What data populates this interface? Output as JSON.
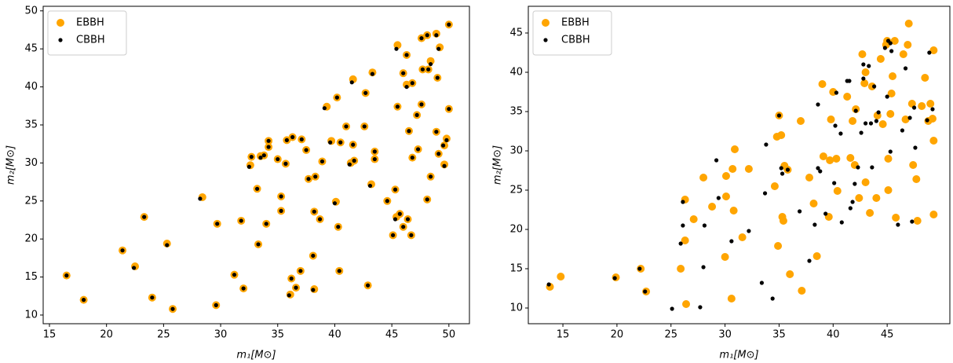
{
  "chart_data": [
    {
      "type": "scatter",
      "xlabel": "m₁[M⊙]",
      "ylabel": "m₂[M⊙]",
      "legend": "upper left",
      "xlim": [
        14.45,
        51.8
      ],
      "ylim": [
        8.86,
        50.6
      ],
      "xticks": [
        15,
        20,
        25,
        30,
        35,
        40,
        45,
        50
      ],
      "yticks": [
        10,
        15,
        20,
        25,
        30,
        35,
        40,
        45,
        50
      ],
      "series": [
        {
          "name": "EBBH",
          "color": "#ffa500",
          "x": [
            16.5,
            18,
            21.4,
            22.5,
            23.3,
            24,
            25.3,
            25.8,
            28.4,
            29.7,
            29.6,
            31.2,
            31.8,
            32,
            32.6,
            32.7,
            33.2,
            33.3,
            33.5,
            33.8,
            34,
            34.2,
            34.2,
            35,
            35.3,
            35.3,
            35.7,
            35.8,
            36.1,
            36.2,
            36.3,
            36.6,
            37,
            37.1,
            37.5,
            37.7,
            38.1,
            38.2,
            38.2,
            38.3,
            38.7,
            38.9,
            39.3,
            39.7,
            40.1,
            40.2,
            40.3,
            40.4,
            40.5,
            41,
            41.4,
            41.6,
            41.6,
            41.7,
            42.6,
            42.7,
            42.9,
            43.2,
            43.3,
            43.5,
            43.5,
            44.6,
            45.1,
            45.3,
            45.4,
            45.5,
            45.5,
            45.7,
            46,
            46,
            46.3,
            46.3,
            46.4,
            46.5,
            46.7,
            46.8,
            46.8,
            47.3,
            47.2,
            47.6,
            47.6,
            47.7,
            48.1,
            48.1,
            48.2,
            48.4,
            48.4,
            48.9,
            48.9,
            49,
            49.1,
            49.2,
            49.6,
            49.6,
            49.8,
            50,
            50
          ],
          "values": [
            15.2,
            12,
            18.5,
            16.4,
            22.9,
            12.3,
            19.4,
            10.8,
            25.5,
            22,
            11.3,
            15.3,
            22.4,
            13.5,
            29.7,
            30.8,
            26.6,
            19.3,
            30.9,
            31,
            22,
            32.1,
            32.9,
            30.5,
            25.6,
            23.7,
            29.9,
            33,
            12.7,
            14.8,
            33.4,
            13.6,
            15.8,
            33.1,
            31.7,
            27.9,
            17.8,
            13.4,
            23.6,
            28.2,
            22.6,
            30.2,
            37.4,
            32.9,
            24.9,
            38.6,
            21.6,
            15.8,
            32.7,
            34.8,
            30,
            32.4,
            41,
            30.3,
            34.8,
            39.2,
            13.9,
            27.2,
            41.9,
            31.5,
            30.5,
            25,
            20.5,
            26.5,
            22.9,
            37.4,
            45.5,
            23.3,
            21.6,
            41.8,
            44.2,
            40.3,
            22.6,
            34.2,
            20.5,
            30.7,
            40.5,
            31.8,
            36.3,
            37.7,
            46.4,
            42.3,
            46.8,
            25.2,
            42.3,
            28.2,
            43.4,
            34.1,
            47,
            41.2,
            31.2,
            45.2,
            32.3,
            29.8,
            33.2,
            37.1,
            48.2
          ]
        },
        {
          "name": "CBBH",
          "color": "#000000",
          "x": [
            16.5,
            18,
            21.4,
            22.4,
            23.3,
            24,
            25.3,
            25.8,
            28.2,
            29.7,
            29.6,
            31.2,
            31.8,
            32,
            32.5,
            32.7,
            33.2,
            33.3,
            33.5,
            33.8,
            34,
            34.2,
            34.2,
            35,
            35.3,
            35.3,
            35.7,
            35.8,
            36,
            36.2,
            36.3,
            36.6,
            37,
            37.1,
            37.5,
            37.7,
            38.1,
            38.1,
            38.2,
            38.3,
            38.7,
            38.9,
            39.1,
            39.6,
            40,
            40.2,
            40.3,
            40.4,
            40.5,
            41,
            41.3,
            41.6,
            41.5,
            41.7,
            42.6,
            42.7,
            42.9,
            43.1,
            43.3,
            43.5,
            43.5,
            44.6,
            45.1,
            45.3,
            45.3,
            45.5,
            45.4,
            45.7,
            46,
            46,
            46.3,
            46.3,
            46.4,
            46.5,
            46.7,
            46.8,
            46.8,
            47.3,
            47.2,
            47.6,
            47.6,
            47.7,
            48.1,
            48.1,
            48.2,
            48.4,
            48.4,
            48.9,
            48.9,
            49,
            49.1,
            49.1,
            49.5,
            49.6,
            49.8,
            50,
            50
          ],
          "values": [
            15.2,
            12,
            18.5,
            16.2,
            22.9,
            12.3,
            19.2,
            10.8,
            25.3,
            22,
            11.3,
            15.3,
            22.4,
            13.5,
            29.5,
            30.8,
            26.6,
            19.3,
            30.7,
            31,
            22,
            32.1,
            32.9,
            30.5,
            25.6,
            23.7,
            29.9,
            33,
            12.6,
            14.8,
            33.4,
            13.6,
            15.8,
            33.1,
            31.7,
            27.9,
            17.8,
            13.3,
            23.6,
            28.2,
            22.6,
            30.2,
            37.2,
            32.7,
            24.7,
            38.6,
            21.6,
            15.8,
            32.7,
            34.8,
            29.8,
            32.4,
            40.6,
            30.3,
            34.8,
            39.2,
            13.9,
            27,
            41.7,
            31.5,
            30.5,
            25,
            20.5,
            26.5,
            22.6,
            37.4,
            45,
            23.3,
            21.6,
            41.8,
            44.2,
            40,
            22.6,
            34.2,
            20.5,
            30.7,
            40.5,
            31.8,
            36.3,
            37.7,
            46.4,
            42.3,
            46.8,
            25.2,
            42.3,
            28.2,
            43,
            34.1,
            46.8,
            41.2,
            31.2,
            45,
            32.3,
            29.6,
            33,
            37.1,
            48.2
          ]
        }
      ]
    },
    {
      "type": "scatter",
      "xlabel": "m₁[M⊙]",
      "ylabel": "m₂[M⊙]",
      "legend": "upper left",
      "xlim": [
        11.8,
        50.8
      ],
      "ylim": [
        8.0,
        48.4
      ],
      "xticks": [
        15,
        20,
        25,
        30,
        35,
        40,
        45
      ],
      "yticks": [
        10,
        15,
        20,
        25,
        30,
        35,
        40,
        45
      ],
      "series": [
        {
          "name": "EBBH",
          "color": "#ffa500",
          "x": [
            13.8,
            14.8,
            19.9,
            22.2,
            22.7,
            25.9,
            26.3,
            26.3,
            26.4,
            27.1,
            28,
            28.8,
            30,
            30.1,
            30.1,
            30.6,
            30.7,
            30.9,
            30.8,
            31.6,
            32.2,
            34.6,
            34.8,
            34.9,
            35,
            35.2,
            35.3,
            35.4,
            35.5,
            35.8,
            36,
            37,
            37.1,
            37.8,
            38.2,
            38.5,
            39,
            39.1,
            39.6,
            39.7,
            39.8,
            40,
            40.3,
            40.4,
            41.3,
            41.6,
            41.8,
            42,
            42.1,
            42.4,
            42.7,
            42.9,
            43,
            43,
            43.4,
            43.6,
            44,
            44.1,
            44.4,
            44.6,
            44.9,
            45,
            45.1,
            45.1,
            45.3,
            45.4,
            45.5,
            45.7,
            45.8,
            46.5,
            46.7,
            46.9,
            47,
            47.3,
            47.4,
            47.7,
            47.8,
            48.2,
            48.5,
            48.8,
            49,
            49.2,
            49.3,
            49.3,
            49.3
          ],
          "values": [
            12.7,
            14,
            13.9,
            15,
            12.1,
            15,
            23.8,
            18.6,
            10.5,
            21.3,
            26.6,
            22.9,
            16.5,
            24.2,
            26.8,
            11.2,
            27.7,
            30.2,
            22.4,
            19,
            27.7,
            25.5,
            31.8,
            17.9,
            34.5,
            32,
            21.6,
            21.1,
            28.1,
            27.6,
            14.3,
            33.8,
            12.2,
            26.6,
            23.3,
            16.6,
            38.5,
            29.3,
            21.6,
            28.8,
            34,
            37.5,
            29,
            24.9,
            36.9,
            29.1,
            33.8,
            28.2,
            35.3,
            24,
            42.3,
            38.6,
            40,
            26,
            22.1,
            38.2,
            24,
            34.5,
            41.7,
            33.4,
            43.5,
            44,
            25,
            29,
            34.7,
            37.3,
            39.5,
            44,
            21.5,
            42.3,
            34,
            43.5,
            46.2,
            36,
            28.2,
            26.4,
            21.1,
            35.7,
            39.3,
            33.8,
            36,
            34.1,
            42.8,
            31.3,
            21.9
          ]
        },
        {
          "name": "CBBH",
          "color": "#000000",
          "x": [
            13.7,
            19.8,
            22.1,
            22.6,
            25.1,
            25.9,
            26.1,
            26.1,
            27.7,
            28,
            28.1,
            29.2,
            29.4,
            30.6,
            32.2,
            33.4,
            33.7,
            33.8,
            34.4,
            35,
            35.2,
            35.3,
            35.8,
            36.9,
            37.8,
            38.6,
            38.3,
            38.6,
            38.8,
            39.3,
            40.1,
            40.2,
            40.3,
            40.7,
            40.8,
            41.3,
            41.5,
            41.6,
            41.8,
            42,
            42.1,
            42.3,
            42.6,
            42.8,
            42.8,
            43,
            43.3,
            43.5,
            43.6,
            43.8,
            44,
            44.2,
            44.8,
            45,
            45.1,
            45.3,
            45.3,
            45.4,
            46,
            46.4,
            46.7,
            47.1,
            47.3,
            47.5,
            47.6,
            48.7,
            48.9,
            49.2
          ],
          "values": [
            13,
            13.8,
            15,
            12.1,
            9.9,
            18.2,
            20.5,
            23.5,
            10.1,
            15.2,
            20.5,
            28.8,
            24,
            18.5,
            19.8,
            13.2,
            24.6,
            30.8,
            11.2,
            34.5,
            27.8,
            27.1,
            27.6,
            22.3,
            16,
            27.8,
            20.6,
            35.9,
            27.4,
            22,
            25.9,
            33.2,
            37.4,
            32.2,
            20.9,
            38.9,
            38.9,
            22.7,
            23.5,
            25.8,
            35.1,
            27.9,
            32.3,
            41,
            39.2,
            33.5,
            40.8,
            33.5,
            27.9,
            38.2,
            33.8,
            34.9,
            43.1,
            36.9,
            44,
            29.9,
            43.7,
            42.7,
            20.6,
            32.6,
            40.5,
            34.2,
            21,
            35.5,
            30.4,
            33.9,
            42.5,
            35.3
          ]
        }
      ]
    }
  ]
}
